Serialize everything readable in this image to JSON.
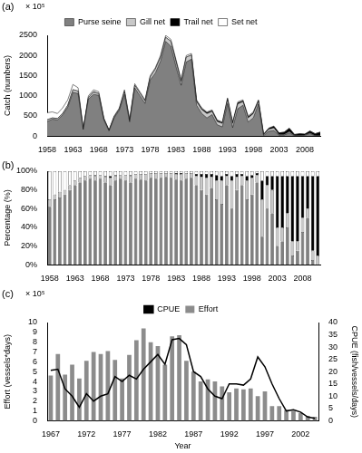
{
  "chart_data": [
    {
      "type": "area",
      "title": "(a)",
      "y_label": "Catch (numbers)",
      "annotations": [
        "× 10⁵"
      ],
      "categories": [
        "1958",
        null,
        null,
        null,
        null,
        "1963",
        null,
        null,
        null,
        null,
        "1968",
        null,
        null,
        null,
        null,
        "1973",
        null,
        null,
        null,
        null,
        "1978",
        null,
        null,
        null,
        null,
        "1983",
        null,
        null,
        null,
        null,
        "1988",
        null,
        null,
        null,
        null,
        "1993",
        null,
        null,
        null,
        null,
        "1998",
        null,
        null,
        null,
        null,
        "2003",
        null,
        null,
        null,
        null,
        "2008",
        null,
        null,
        null
      ],
      "series": [
        {
          "name": "Purse seine",
          "color": "#808080",
          "values": [
            360,
            420,
            403,
            525,
            720,
            1088,
            1056,
            162,
            920,
            1035,
            1012,
            396,
            128,
            450,
            644,
            1035,
            352,
            1196,
            1001,
            810,
            1395,
            1564,
            1860,
            2350,
            2232,
            1729,
            1260,
            1840,
            1907,
            765,
            560,
            450,
            533,
            280,
            228,
            808,
            210,
            680,
            765,
            350,
            450,
            792,
            15,
            120,
            138,
            16,
            25,
            80,
            4,
            9,
            18,
            65,
            3,
            0
          ]
        },
        {
          "name": "Gill net",
          "color": "#c8c8c8",
          "values": [
            46,
            30,
            34,
            35,
            45,
            64,
            60,
            9,
            40,
            58,
            44,
            27,
            12,
            25,
            28,
            69,
            28,
            65,
            66,
            63,
            75,
            102,
            100,
            100,
            120,
            114,
            98,
            120,
            102,
            90,
            98,
            108,
            78,
            80,
            87,
            95,
            105,
            119,
            90,
            100,
            108,
            72,
            20,
            50,
            62,
            16,
            15,
            30,
            6,
            6,
            7,
            13,
            6,
            10
          ]
        },
        {
          "name": "Trail net",
          "color": "#000000",
          "values": [
            0,
            0,
            0,
            0,
            0,
            0,
            0,
            0,
            0,
            11,
            0,
            5,
            3,
            5,
            0,
            0,
            4,
            0,
            0,
            0,
            0,
            0,
            0,
            0,
            0,
            19,
            14,
            0,
            0,
            18,
            21,
            24,
            20,
            24,
            18,
            19,
            18,
            26,
            18,
            25,
            18,
            18,
            10,
            20,
            38,
            44,
            55,
            80,
            28,
            42,
            22,
            45,
            48,
            85
          ]
        },
        {
          "name": "Set net",
          "color": "#ffffff",
          "values": [
            174,
            150,
            123,
            140,
            135,
            128,
            84,
            9,
            40,
            46,
            44,
            22,
            7,
            20,
            28,
            46,
            16,
            39,
            33,
            27,
            30,
            34,
            40,
            50,
            48,
            38,
            28,
            40,
            41,
            27,
            21,
            18,
            19,
            16,
            17,
            28,
            17,
            25,
            27,
            25,
            24,
            18,
            5,
            10,
            12,
            4,
            5,
            10,
            2,
            3,
            3,
            7,
            3,
            5
          ]
        }
      ],
      "ylim": [
        0,
        2500
      ],
      "yticks": [
        0,
        500,
        1000,
        1500,
        2000,
        2500
      ],
      "stacked": true,
      "grid": false,
      "legend": "top"
    },
    {
      "type": "bar",
      "title": "(b)",
      "y_label": "Percentage (%)",
      "categories": [
        "1958",
        null,
        null,
        null,
        null,
        "1963",
        null,
        null,
        null,
        null,
        "1968",
        null,
        null,
        null,
        null,
        "1973",
        null,
        null,
        null,
        null,
        "1978",
        null,
        null,
        null,
        null,
        "1983",
        null,
        null,
        null,
        null,
        "1988",
        null,
        null,
        null,
        null,
        "1993",
        null,
        null,
        null,
        null,
        "1998",
        null,
        null,
        null,
        null,
        "2003",
        null,
        null,
        null,
        null,
        "2008",
        null,
        null,
        null
      ],
      "series": [
        {
          "name": "Purse seine",
          "color": "#808080",
          "values": [
            62,
            70,
            72,
            75,
            80,
            85,
            88,
            90,
            92,
            90,
            92,
            88,
            85,
            90,
            92,
            90,
            88,
            92,
            91,
            90,
            93,
            92,
            93,
            94,
            93,
            91,
            90,
            92,
            93,
            85,
            80,
            75,
            82,
            70,
            65,
            85,
            60,
            80,
            85,
            70,
            75,
            88,
            30,
            60,
            55,
            20,
            25,
            40,
            10,
            15,
            35,
            50,
            5,
            0
          ]
        },
        {
          "name": "Gill net",
          "color": "#c8c8c8",
          "values": [
            8,
            5,
            6,
            5,
            5,
            5,
            5,
            5,
            4,
            5,
            4,
            6,
            8,
            5,
            4,
            6,
            7,
            5,
            6,
            7,
            5,
            6,
            5,
            4,
            5,
            6,
            7,
            6,
            5,
            10,
            14,
            18,
            12,
            20,
            25,
            10,
            30,
            14,
            10,
            20,
            18,
            8,
            40,
            25,
            25,
            20,
            15,
            15,
            15,
            10,
            15,
            10,
            10,
            10
          ]
        },
        {
          "name": "Trail net",
          "color": "#000000",
          "values": [
            0,
            0,
            0,
            0,
            0,
            0,
            0,
            0,
            0,
            1,
            0,
            1,
            2,
            1,
            0,
            0,
            1,
            0,
            0,
            0,
            0,
            0,
            0,
            0,
            0,
            1,
            1,
            0,
            0,
            2,
            3,
            4,
            3,
            6,
            5,
            2,
            5,
            3,
            2,
            5,
            3,
            2,
            20,
            10,
            15,
            55,
            55,
            40,
            70,
            70,
            45,
            35,
            80,
            85
          ]
        },
        {
          "name": "Set net",
          "color": "#ffffff",
          "values": [
            30,
            25,
            22,
            20,
            15,
            10,
            7,
            5,
            4,
            4,
            4,
            5,
            5,
            4,
            4,
            4,
            4,
            3,
            3,
            3,
            2,
            2,
            2,
            2,
            2,
            2,
            2,
            2,
            2,
            3,
            3,
            3,
            3,
            4,
            5,
            3,
            5,
            3,
            3,
            5,
            4,
            2,
            10,
            5,
            5,
            5,
            5,
            5,
            5,
            5,
            5,
            5,
            5,
            5
          ]
        }
      ],
      "ylim": [
        0,
        100
      ],
      "yticks": [
        {
          "value": 0,
          "label": "0%"
        },
        {
          "value": 20,
          "label": "20%"
        },
        {
          "value": 40,
          "label": "40%"
        },
        {
          "value": 60,
          "label": "60%"
        },
        {
          "value": 80,
          "label": "80%"
        },
        {
          "value": 100,
          "label": "100%"
        }
      ],
      "stacked": true,
      "grid": false
    },
    {
      "type": "bar",
      "title": "(c)",
      "x_label": "Year",
      "y_label": "Effort (vessels*days)",
      "y2_label": "CPUE (fish/vessels/days)",
      "annotations": [
        "× 10⁵"
      ],
      "categories": [
        "1967",
        null,
        null,
        null,
        null,
        "1972",
        null,
        null,
        null,
        null,
        "1977",
        null,
        null,
        null,
        null,
        "1982",
        null,
        null,
        null,
        null,
        "1987",
        null,
        null,
        null,
        null,
        "1992",
        null,
        null,
        null,
        null,
        "1997",
        null,
        null,
        null,
        null,
        "2002",
        null,
        null
      ],
      "series": [
        {
          "name": "Effort",
          "color": "#8c8c8c",
          "type": "bar",
          "values": [
            4.6,
            6.8,
            4.7,
            5.7,
            4.3,
            6.1,
            7.0,
            6.8,
            7.1,
            6.2,
            4.3,
            6.7,
            8.2,
            9.4,
            8.0,
            7.6,
            5.7,
            8.6,
            8.7,
            6.1,
            5.0,
            4.0,
            4.2,
            4.0,
            3.5,
            2.9,
            3.3,
            3.2,
            3.3,
            2.5,
            3.0,
            1.5,
            1.5,
            1.1,
            1.0,
            0.8,
            0.5,
            0.4
          ]
        },
        {
          "name": "CPUE",
          "color": "#000000",
          "type": "line",
          "axis": "y2",
          "values": [
            20.5,
            21,
            13,
            10,
            5.5,
            11,
            8,
            10,
            11,
            18,
            16,
            18.5,
            17,
            21,
            24,
            27,
            23,
            33,
            33.5,
            31,
            20,
            18,
            13,
            10,
            9,
            15,
            15,
            14.5,
            17,
            26,
            22,
            15,
            9,
            4,
            4.5,
            3.5,
            1.5,
            1
          ]
        }
      ],
      "ylim": [
        0,
        10
      ],
      "yticks": [
        0,
        1,
        2,
        3,
        4,
        5,
        6,
        7,
        8,
        9,
        10
      ],
      "y2lim": [
        0,
        40
      ],
      "y2ticks": [
        0,
        5,
        10,
        15,
        20,
        25,
        30,
        35,
        40
      ],
      "grid": false,
      "legend": "top"
    }
  ]
}
